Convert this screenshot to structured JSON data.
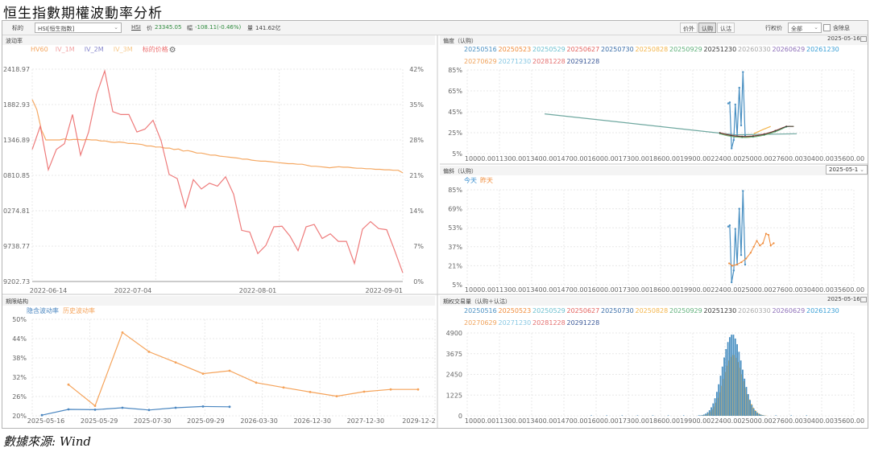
{
  "page_title": "恒生指數期權波動率分析",
  "source": "數據來源: Wind",
  "toolbar": {
    "underlying_label": "标的",
    "underlying_value": "HSI[恒生指数]",
    "ticker": "HSI",
    "price_label": "价",
    "price_value": "23345.05",
    "change_label": "幅",
    "change_value": "-108.11(-0.46%)",
    "volume_label": "量",
    "volume_value": "141.62亿",
    "tabs": [
      "价外",
      "认购",
      "认沽"
    ],
    "active_tab": "认购",
    "strike_label": "行权价",
    "strike_value": "全部",
    "include_label": "含除息"
  },
  "panels": {
    "vol": {
      "title": "波动率"
    },
    "skew": {
      "title": "偏度（认购）",
      "date": "2025-05-16"
    },
    "slope": {
      "title": "偏斜（认购）",
      "date": "2025-05-1"
    },
    "term": {
      "title": "期限结构"
    },
    "volume": {
      "title": "期权交易量（认购＋认沽）",
      "date": "2025-05-16"
    }
  },
  "chart_data": [
    {
      "id": "vol",
      "type": "line",
      "legend": [
        "HV60",
        "IV_1M",
        "IV_2M",
        "IV_3M",
        "标的价格"
      ],
      "colors": {
        "HV60": "#f4a65f",
        "IV_1M": "#f2a3a3",
        "IV_2M": "#8888cc",
        "IV_3M": "#f6c88a",
        "标的价格": "#ec6f6f"
      },
      "x_ticks": [
        "2022-06-14",
        "2022-07-04",
        "2022-08-01",
        "2022-09-01"
      ],
      "y_left_ticks": [
        "2418.97",
        "1882.93",
        "1346.89",
        "0810.85",
        "0274.81",
        "9738.77",
        "9202.73"
      ],
      "y_right_ticks": [
        "42%",
        "35%",
        "28%",
        "21%",
        "14%",
        "7%",
        "0%"
      ],
      "y_right_lim": [
        0,
        42
      ],
      "series": [
        {
          "name": "HV60",
          "axis": "right",
          "color": "#f5a964",
          "values": [
            36,
            34,
            30,
            28,
            28,
            28,
            28,
            28.2,
            28,
            28.1,
            28.1,
            28,
            28.1,
            28,
            28,
            27.8,
            27.8,
            27.6,
            27.5,
            27.6,
            27.5,
            27.3,
            27.3,
            27.2,
            27.1,
            26.8,
            26.8,
            26.6,
            26.6,
            26.4,
            26.4,
            26.1,
            26.2,
            25.8,
            25.9,
            25.7,
            25.4,
            25.4,
            25.2,
            25,
            25,
            24.8,
            24.7,
            24.6,
            24.5,
            24.4,
            24.2,
            24.2,
            24,
            23.9,
            23.8,
            23.8,
            23.7,
            23.6,
            23.5,
            23.4,
            23.3,
            23.3,
            23.2,
            23.2,
            23,
            22.8,
            22.8,
            22.7,
            22.6,
            22.5,
            22.6,
            22.7,
            22.6,
            22.6,
            22.5,
            22.4,
            22.4,
            22.3,
            22.3,
            22.2,
            22.2,
            22.1,
            22.1,
            22,
            22,
            21.5
          ]
        },
        {
          "name": "标的价格",
          "axis": "left",
          "color": "#ee7b7b",
          "values": [
            21400,
            21800,
            21050,
            21400,
            21500,
            22000,
            21300,
            21700,
            22350,
            22750,
            22050,
            22000,
            22000,
            21700,
            21750,
            21900,
            21550,
            20970,
            20900,
            20400,
            20880,
            20720,
            20820,
            20770,
            20930,
            20630,
            20010,
            19980,
            19610,
            19750,
            20070,
            20080,
            19910,
            19660,
            20070,
            20110,
            19870,
            19950,
            19820,
            19820,
            19440,
            20030,
            20160,
            20040,
            20020,
            19660,
            19280
          ]
        }
      ]
    },
    {
      "id": "skew",
      "type": "line",
      "x_ticks": [
        "10000.00",
        "11300.00",
        "13400.00",
        "14700.00",
        "16000.00",
        "17300.00",
        "18600.00",
        "19900.00",
        "22400.00",
        "25000.00",
        "27600.00",
        "30400.00",
        "35600.00"
      ],
      "y_ticks": [
        "85%",
        "65%",
        "45%",
        "25%",
        "5%"
      ],
      "ylim": [
        5,
        85
      ],
      "series_names": [
        "20250516",
        "20250523",
        "20250529",
        "20250627",
        "20250730",
        "20250828",
        "20250929",
        "20251230",
        "20260330",
        "20260629",
        "20261230",
        "20270629",
        "20271230",
        "20281228",
        "20291228"
      ],
      "series_colors": [
        "#4a90c2",
        "#f08b39",
        "#6bbfcf",
        "#e3625e",
        "#3b6ea8",
        "#f3b54b",
        "#5fb07a",
        "#3a3a3a",
        "#a9a9a9",
        "#8d6fb8",
        "#3a9fd6",
        "#f0a35c",
        "#86c7e3",
        "#e46f6f",
        "#3d5a99"
      ]
    },
    {
      "id": "slope",
      "type": "line",
      "legend": [
        "今天",
        "昨天"
      ],
      "x_ticks": [
        "10000.00",
        "11300.00",
        "13400.00",
        "14700.00",
        "16000.00",
        "17300.00",
        "18600.00",
        "19900.00",
        "22400.00",
        "25000.00",
        "27600.00",
        "30400.00",
        "35600.00"
      ],
      "y_ticks": [
        "85%",
        "69%",
        "53%",
        "37%",
        "21%",
        "5%"
      ],
      "ylim": [
        5,
        85
      ]
    },
    {
      "id": "term",
      "type": "line",
      "legend": [
        "隐含波动率",
        "历史波动率"
      ],
      "x_ticks": [
        "2025-05-16",
        "2025-05-29",
        "2025-07-30",
        "2025-09-29",
        "2026-03-30",
        "2026-12-30",
        "2027-12-30",
        "2029-12-2"
      ],
      "y_ticks": [
        "50%",
        "44%",
        "38%",
        "32%",
        "26%",
        "20%"
      ],
      "ylim": [
        20,
        50
      ],
      "series": [
        {
          "name": "隐含波动率",
          "color": "#4a86c0",
          "values": [
            20.2,
            22.0,
            21.9,
            22.5,
            21.8,
            22.5,
            22.9,
            22.8
          ]
        },
        {
          "name": "历史波动率",
          "color": "#f5a35a",
          "values": [
            29.7,
            23.1,
            45.9,
            39.9,
            36.6,
            33.1,
            34.0,
            30.3,
            28.8,
            27.4,
            26.1,
            27.5,
            28.2,
            28.2
          ]
        }
      ]
    },
    {
      "id": "volume",
      "type": "bar",
      "x_ticks": [
        "10000.00",
        "11300.00",
        "13400.00",
        "14700.00",
        "16000.00",
        "17300.00",
        "18600.00",
        "19900.00",
        "22400.00",
        "25000.00",
        "27600.00",
        "30400.00",
        "35600.00"
      ],
      "y_ticks": [
        "4900",
        "3675",
        "2450",
        "1225",
        "0"
      ],
      "ylim": [
        0,
        4900
      ],
      "series_names": [
        "20250516",
        "20250523",
        "20250529",
        "20250627",
        "20250730",
        "20250828",
        "20250929",
        "20251230",
        "20260330",
        "20260629",
        "20261230",
        "20270629",
        "20271230",
        "20281228",
        "20291228"
      ]
    }
  ]
}
